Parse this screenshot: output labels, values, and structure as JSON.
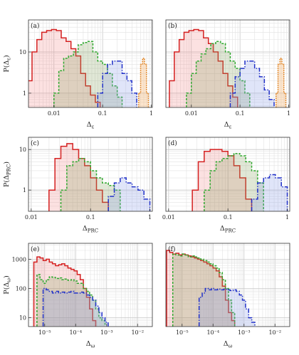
{
  "chart_data": [
    {
      "type": "area",
      "panel_label": "(a)",
      "ylabel": "P(Δε)",
      "xlabel": "Δε",
      "xscale": "log",
      "yscale": "log",
      "xlim": [
        0.003,
        1.05
      ],
      "ylim": [
        0.45,
        60
      ],
      "xticks": [
        {
          "v": 0.01,
          "t": "0.01"
        },
        {
          "v": 0.1,
          "t": "0.1"
        },
        {
          "v": 1,
          "t": "1"
        }
      ],
      "yticks": [
        {
          "v": 1,
          "t": "1"
        },
        {
          "v": 10,
          "t": "10"
        }
      ],
      "grid": true,
      "series": [
        {
          "color": "#d42020",
          "fill": "rgba(240,120,120,0.22)",
          "dash": "",
          "start": -2.55,
          "width": 0.1,
          "values": [
            2,
            10,
            20,
            30,
            33,
            35,
            33,
            22,
            18,
            12,
            8,
            3,
            1.5,
            0.9,
            0.6
          ]
        },
        {
          "color": "#2fa82f",
          "fill": "rgba(130,160,90,0.25)",
          "dash": "3,2",
          "start": -2.0,
          "width": 0.1,
          "values": [
            1,
            3.5,
            7,
            8,
            10,
            15,
            17,
            18,
            10,
            6,
            5,
            3,
            1.5,
            0.8
          ]
        },
        {
          "color": "#2030c8",
          "fill": "rgba(130,150,230,0.25)",
          "dash": "6,2,1.5,2",
          "start": -1.1,
          "width": 0.1,
          "values": [
            1,
            3,
            5,
            6,
            6,
            3,
            2,
            1
          ]
        },
        {
          "color": "#e07a10",
          "fill": "rgba(245,170,90,0.30)",
          "dash": "1.5,1.5",
          "start": -0.26,
          "width": 0.04,
          "values": [
            1,
            5,
            7,
            5,
            1
          ]
        }
      ]
    },
    {
      "type": "area",
      "panel_label": "(b)",
      "ylabel": "",
      "xlabel": "Δε",
      "xscale": "log",
      "yscale": "log",
      "xlim": [
        0.003,
        1.05
      ],
      "ylim": [
        0.45,
        60
      ],
      "xticks": [
        {
          "v": 0.01,
          "t": "0.01"
        },
        {
          "v": 0.1,
          "t": "0.1"
        },
        {
          "v": 1,
          "t": "1"
        }
      ],
      "yticks": [],
      "grid": true,
      "series": [
        {
          "color": "#d42020",
          "fill": "rgba(240,120,120,0.22)",
          "dash": "",
          "start": -2.45,
          "width": 0.1,
          "values": [
            2,
            10,
            20,
            30,
            33,
            35,
            33,
            22,
            16,
            10,
            6,
            3,
            1.5,
            0.8
          ]
        },
        {
          "color": "#2fa82f",
          "fill": "rgba(130,160,90,0.25)",
          "dash": "3,2",
          "start": -2.1,
          "width": 0.1,
          "values": [
            1,
            3,
            6,
            9,
            12,
            16,
            18,
            16,
            10,
            6,
            4,
            2,
            1
          ]
        },
        {
          "color": "#2030c8",
          "fill": "rgba(130,150,230,0.25)",
          "dash": "6,2,1.5,2",
          "start": -1.2,
          "width": 0.1,
          "values": [
            1,
            2.5,
            4,
            6,
            6,
            4,
            2.5,
            1.2,
            0.7
          ]
        },
        {
          "color": "#e07a10",
          "fill": "rgba(245,170,90,0.30)",
          "dash": "1.5,1.5",
          "start": -0.26,
          "width": 0.04,
          "values": [
            1,
            5,
            7,
            5,
            1
          ]
        }
      ]
    },
    {
      "type": "area",
      "panel_label": "(c)",
      "ylabel": "P(ΔPRC)",
      "xlabel": "ΔPRC",
      "xscale": "log",
      "yscale": "log",
      "xlim": [
        0.009,
        1.1
      ],
      "ylim": [
        0.3,
        20
      ],
      "xticks": [
        {
          "v": 0.01,
          "t": "0.01"
        },
        {
          "v": 0.1,
          "t": "0.1"
        },
        {
          "v": 1,
          "t": "1"
        }
      ],
      "yticks": [
        {
          "v": 1,
          "t": "1"
        },
        {
          "v": 10,
          "t": "10"
        }
      ],
      "grid": true,
      "series": [
        {
          "color": "#d42020",
          "fill": "rgba(240,120,120,0.22)",
          "dash": "",
          "start": -1.7,
          "width": 0.1,
          "values": [
            1,
            6,
            12,
            14,
            10,
            6,
            4,
            2,
            1,
            0.5
          ]
        },
        {
          "color": "#2fa82f",
          "fill": "rgba(130,160,90,0.25)",
          "dash": "3,2",
          "start": -1.5,
          "width": 0.1,
          "values": [
            1,
            4,
            5,
            6,
            5,
            3,
            2,
            1.5,
            1.3,
            1
          ]
        },
        {
          "color": "#2030c8",
          "fill": "rgba(130,150,230,0.25)",
          "dash": "6,2,1.5,2",
          "start": -0.7,
          "width": 0.1,
          "values": [
            0.7,
            1.5,
            2,
            1.5,
            1.2,
            1,
            0.6
          ]
        }
      ]
    },
    {
      "type": "area",
      "panel_label": "(d)",
      "ylabel": "",
      "xlabel": "ΔPRC",
      "xscale": "log",
      "yscale": "log",
      "xlim": [
        0.009,
        1.1
      ],
      "ylim": [
        0.3,
        20
      ],
      "xticks": [
        {
          "v": 0.01,
          "t": "0.01"
        },
        {
          "v": 0.1,
          "t": "0.1"
        },
        {
          "v": 1,
          "t": "1"
        }
      ],
      "yticks": [],
      "grid": true,
      "series": [
        {
          "color": "#d42020",
          "fill": "rgba(240,120,120,0.22)",
          "dash": "",
          "start": -1.6,
          "width": 0.1,
          "values": [
            1,
            5,
            9,
            10,
            10,
            9,
            7,
            4,
            2,
            0.6
          ]
        },
        {
          "color": "#2fa82f",
          "fill": "rgba(130,160,90,0.25)",
          "dash": "3,2",
          "start": -1.4,
          "width": 0.1,
          "values": [
            1,
            3,
            5,
            6,
            7,
            8,
            7,
            5,
            3,
            1.5
          ]
        },
        {
          "color": "#2030c8",
          "fill": "rgba(130,150,230,0.25)",
          "dash": "6,2,1.5,2",
          "start": -0.6,
          "width": 0.1,
          "values": [
            0.6,
            1.5,
            2,
            2.4,
            2,
            1.2
          ]
        }
      ]
    },
    {
      "type": "area",
      "panel_label": "(e)",
      "ylabel": "P(Δω)",
      "xlabel": "Δω",
      "xscale": "log",
      "yscale": "log",
      "xlim": [
        3e-06,
        0.03
      ],
      "ylim": [
        5,
        3500
      ],
      "xticks": [
        {
          "v": 1e-05,
          "t": "10⁻⁵"
        },
        {
          "v": 0.0001,
          "t": "10⁻⁴"
        },
        {
          "v": 0.001,
          "t": "10⁻³"
        },
        {
          "v": 0.01,
          "t": "10⁻²"
        }
      ],
      "yticks": [
        {
          "v": 10,
          "t": "10"
        },
        {
          "v": 100,
          "t": "100"
        },
        {
          "v": 1000,
          "t": "1000"
        }
      ],
      "grid": true,
      "series": [
        {
          "color": "#d42020",
          "fill": "rgba(240,120,120,0.22)",
          "dash": "",
          "start": -5.35,
          "width": 0.1,
          "values": [
            800,
            1200,
            1100,
            900,
            1000,
            800,
            700,
            600,
            650,
            700,
            600,
            500,
            450,
            400,
            300,
            200,
            100,
            50,
            20,
            8
          ]
        },
        {
          "color": "#2fa82f",
          "fill": "rgba(130,160,90,0.25)",
          "dash": "3,2",
          "start": -5.25,
          "width": 0.1,
          "values": [
            300,
            200,
            150,
            200,
            250,
            240,
            220,
            230,
            200,
            210,
            190,
            200,
            180,
            150,
            150,
            100,
            80,
            60,
            40,
            20,
            10,
            8
          ]
        },
        {
          "color": "#2030c8",
          "fill": "rgba(130,150,230,0.25)",
          "dash": "6,2,1.5,2",
          "start": -5.05,
          "width": 0.1,
          "values": [
            100,
            90,
            80,
            70,
            80,
            70,
            75,
            70,
            75,
            80,
            70,
            70,
            75,
            70,
            60,
            50,
            40,
            25,
            15,
            10,
            7
          ]
        }
      ]
    },
    {
      "type": "area",
      "panel_label": "(f)",
      "ylabel": "",
      "xlabel": "Δω",
      "xscale": "log",
      "yscale": "log",
      "xlim": [
        3e-06,
        0.03
      ],
      "ylim": [
        5,
        3500
      ],
      "xticks": [
        {
          "v": 1e-05,
          "t": "10⁻⁵"
        },
        {
          "v": 0.0001,
          "t": "10⁻⁴"
        },
        {
          "v": 0.001,
          "t": "10⁻³"
        },
        {
          "v": 0.01,
          "t": "10⁻²"
        }
      ],
      "yticks": [],
      "grid": true,
      "series": [
        {
          "color": "#d42020",
          "fill": "rgba(240,120,120,0.22)",
          "dash": "",
          "start": -5.5,
          "width": 0.1,
          "values": [
            2000,
            1700,
            1500,
            1600,
            1400,
            1500,
            1400,
            1300,
            1200,
            1100,
            1000,
            900,
            800,
            700,
            600,
            500,
            400,
            250,
            120,
            40,
            15,
            8
          ]
        },
        {
          "color": "#2fa82f",
          "fill": "rgba(130,160,90,0.25)",
          "dash": "3,2",
          "start": -5.3,
          "width": 0.1,
          "values": [
            1500,
            1400,
            1300,
            1500,
            1400,
            1200,
            1300,
            1200,
            1100,
            1000,
            900,
            800,
            700,
            600,
            500,
            350,
            200,
            100,
            40,
            15
          ]
        },
        {
          "color": "#2030c8",
          "fill": "rgba(130,150,230,0.25)",
          "dash": "6,2,1.5,2",
          "start": -4.45,
          "width": 0.1,
          "values": [
            50,
            70,
            100,
            90,
            100,
            90,
            95,
            90,
            95,
            90,
            85,
            90,
            80,
            60,
            40,
            20,
            10,
            7
          ]
        }
      ]
    }
  ]
}
